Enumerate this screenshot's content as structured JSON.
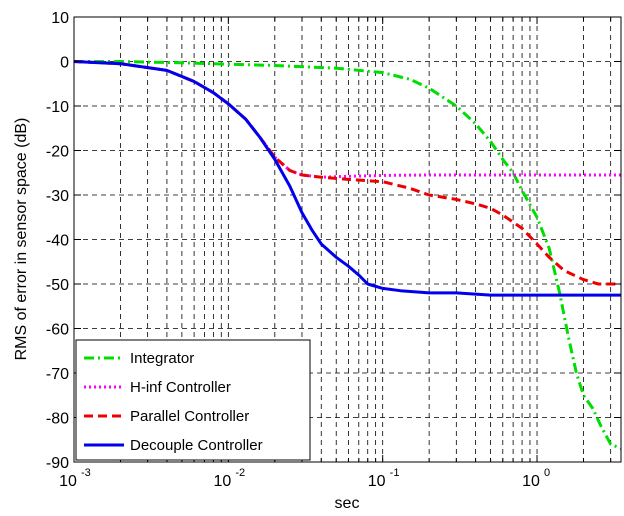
{
  "chart_data": {
    "type": "line",
    "title": "",
    "xlabel": "sec",
    "ylabel": "RMS of error in sensor space (dB)",
    "x_scale": "log",
    "xlim": [
      0.001,
      3.5
    ],
    "ylim": [
      -90,
      10
    ],
    "grid": true,
    "legend_position": "bottom-left",
    "x_ticks": [
      {
        "base": "10",
        "exp": "-3",
        "value": 0.001
      },
      {
        "base": "10",
        "exp": "-2",
        "value": 0.01
      },
      {
        "base": "10",
        "exp": "-1",
        "value": 0.1
      },
      {
        "base": "10",
        "exp": "0",
        "value": 1
      }
    ],
    "y_ticks": [
      10,
      0,
      -10,
      -20,
      -30,
      -40,
      -50,
      -60,
      -70,
      -80,
      -90
    ],
    "series": [
      {
        "name": "Integrator",
        "color": "#00dd00",
        "dash": "dash-dot",
        "x": [
          0.001,
          0.002,
          0.005,
          0.01,
          0.02,
          0.05,
          0.1,
          0.15,
          0.2,
          0.3,
          0.4,
          0.5,
          0.6,
          0.7,
          0.8,
          1.0,
          1.2,
          1.4,
          1.6,
          1.8,
          2.0,
          2.3,
          2.6,
          3.0,
          3.5
        ],
        "y": [
          0,
          0,
          -0.3,
          -0.6,
          -0.9,
          -1.5,
          -2.5,
          -4,
          -6,
          -10,
          -14,
          -18,
          -22,
          -25,
          -29,
          -35,
          -42,
          -52,
          -62,
          -70,
          -75,
          -78,
          -82,
          -86,
          -87
        ]
      },
      {
        "name": "H-inf Controller",
        "color": "#ff00ff",
        "dash": "dotted",
        "x": [
          0.001,
          0.002,
          0.004,
          0.006,
          0.008,
          0.01,
          0.013,
          0.016,
          0.02,
          0.025,
          0.03,
          0.04,
          0.06,
          0.1,
          0.2,
          0.5,
          1.0,
          2.0,
          3.5
        ],
        "y": [
          0,
          -0.5,
          -2,
          -4.5,
          -7,
          -9.5,
          -13,
          -17,
          -21.5,
          -24.5,
          -25.5,
          -26,
          -25.8,
          -25.6,
          -25.5,
          -25.5,
          -25.5,
          -25.5,
          -25.5
        ]
      },
      {
        "name": "Parallel Controller",
        "color": "#ee0000",
        "dash": "dashed",
        "x": [
          0.001,
          0.002,
          0.004,
          0.006,
          0.008,
          0.01,
          0.013,
          0.016,
          0.02,
          0.025,
          0.03,
          0.04,
          0.06,
          0.1,
          0.15,
          0.2,
          0.3,
          0.4,
          0.5,
          0.6,
          0.8,
          1.0,
          1.2,
          1.5,
          2.0,
          2.5,
          3.0,
          3.5
        ],
        "y": [
          0,
          -0.5,
          -2,
          -4.5,
          -7,
          -9.5,
          -13,
          -17,
          -21.5,
          -24.5,
          -25.5,
          -26,
          -26.5,
          -27,
          -28.5,
          -30,
          -31,
          -32,
          -33,
          -34.5,
          -37.5,
          -41,
          -44,
          -47,
          -49,
          -50,
          -50,
          -50
        ]
      },
      {
        "name": "Decouple Controller",
        "color": "#0000ee",
        "dash": "solid",
        "x": [
          0.001,
          0.002,
          0.004,
          0.006,
          0.008,
          0.01,
          0.013,
          0.016,
          0.02,
          0.025,
          0.03,
          0.035,
          0.04,
          0.05,
          0.06,
          0.07,
          0.08,
          0.1,
          0.13,
          0.2,
          0.3,
          0.5,
          1.0,
          2.0,
          3.5
        ],
        "y": [
          0,
          -0.5,
          -2,
          -4.5,
          -7,
          -9.5,
          -13,
          -17,
          -22,
          -28,
          -34,
          -38,
          -41,
          -44,
          -46,
          -48,
          -50,
          -51,
          -51.5,
          -52,
          -52,
          -52.5,
          -52.5,
          -52.5,
          -52.5
        ]
      }
    ]
  }
}
